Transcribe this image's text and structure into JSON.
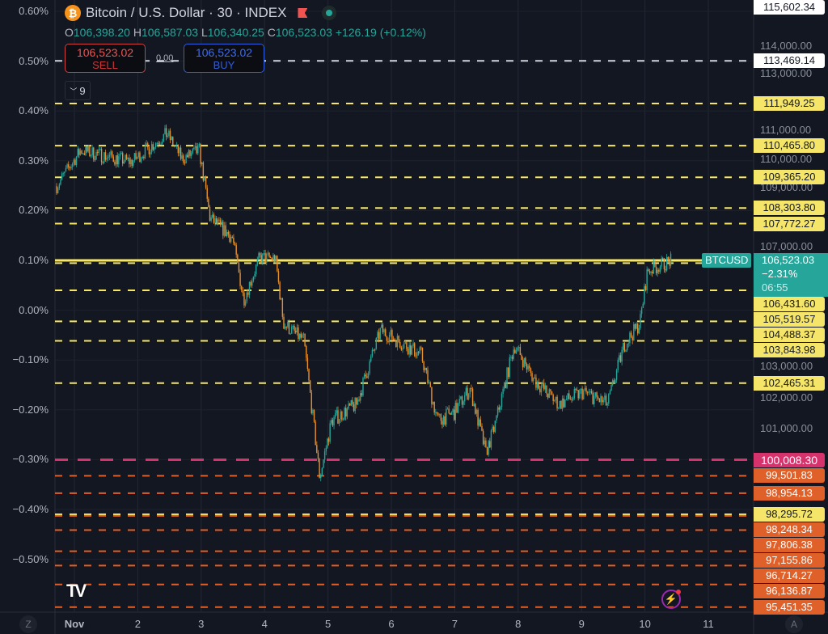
{
  "header": {
    "symbol_title": "Bitcoin / U.S. Dollar · 30 · INDEX",
    "coin_icon": "bitcoin-icon",
    "flag_icon": "flag-icon",
    "status_icon": "market-open-dot-icon",
    "ohlc": {
      "o_label": "O",
      "o": "106,398.20",
      "h_label": "H",
      "h": "106,587.03",
      "l_label": "L",
      "l": "106,340.25",
      "c_label": "C",
      "c": "106,523.03",
      "change": "+126.19 (+0.12%)"
    }
  },
  "trade": {
    "sell_price": "106,523.02",
    "sell_label": "SELL",
    "spread": "0.00",
    "buy_price": "106,523.02",
    "buy_label": "BUY"
  },
  "indicators_toggle": {
    "count": "9"
  },
  "percent_axis": [
    "0.60%",
    "0.50%",
    "0.40%",
    "0.30%",
    "0.20%",
    "0.10%",
    "0.00%",
    "−0.10%",
    "−0.20%",
    "−0.30%",
    "−0.40%",
    "−0.50%"
  ],
  "price_axis_ticks": [
    "114,000.00",
    "113,000.00",
    "111,000.00",
    "110,000.00",
    "109,000.00",
    "107,000.00",
    "103,000.00",
    "102,000.00",
    "101,000.00"
  ],
  "price_axis_tick_values": [
    114000,
    113000,
    111000,
    110000,
    109000,
    107000,
    103000,
    102000,
    101000
  ],
  "top_label": "115,602.34",
  "current": {
    "symbol": "BTCUSD",
    "price": "106,523.03",
    "change": "−2.31%",
    "countdown": "06:55",
    "value": 106523.03,
    "color": "#26a69a"
  },
  "levels": [
    {
      "label": "113,469.14",
      "value": 113469.14,
      "kind": "white"
    },
    {
      "label": "111,949.25",
      "value": 111949.25,
      "kind": "yellow"
    },
    {
      "label": "110,465.80",
      "value": 110465.8,
      "kind": "yellow"
    },
    {
      "label": "109,365.20",
      "value": 109365.2,
      "kind": "yellow"
    },
    {
      "label": "108,303.80",
      "value": 108303.8,
      "kind": "yellow"
    },
    {
      "label": "107,772.27",
      "value": 107772.27,
      "kind": "yellow"
    },
    {
      "label": "106,431.60",
      "value": 106431.6,
      "kind": "yellow"
    },
    {
      "label": "105,519.57",
      "value": 105519.57,
      "kind": "yellow"
    },
    {
      "label": "104,488.37",
      "value": 104488.37,
      "kind": "yellow"
    },
    {
      "label": "103,843.98",
      "value": 103843.98,
      "kind": "yellow"
    },
    {
      "label": "102,465.31",
      "value": 102465.31,
      "kind": "yellow"
    },
    {
      "label": "100,008.30",
      "value": 100008.3,
      "kind": "pink"
    },
    {
      "label": "99,501.83",
      "value": 99501.83,
      "kind": "orange"
    },
    {
      "label": "98,954.13",
      "value": 98954.13,
      "kind": "orange"
    },
    {
      "label": "98,295.72",
      "value": 98295.72,
      "kind": "yellow"
    },
    {
      "label": "98,248.34",
      "value": 98248.34,
      "kind": "orange"
    },
    {
      "label": "97,806.38",
      "value": 97806.38,
      "kind": "orange"
    },
    {
      "label": "97,155.86",
      "value": 97155.86,
      "kind": "orange"
    },
    {
      "label": "96,714.27",
      "value": 96714.27,
      "kind": "orange"
    },
    {
      "label": "96,136.87",
      "value": 96136.87,
      "kind": "orange"
    },
    {
      "label": "95,451.35",
      "value": 95451.35,
      "kind": "orange"
    }
  ],
  "colors": {
    "white": "#d1d4dc",
    "yellow": "#f5e66a",
    "pink": "#d6336c",
    "orange": "#e0602a",
    "up": "#26a69a",
    "down": "#e8902e",
    "background": "#131722"
  },
  "time_axis": [
    "Nov",
    "2",
    "3",
    "4",
    "5",
    "6",
    "7",
    "8",
    "9",
    "10",
    "11"
  ],
  "time_axis_days": [
    1,
    2,
    3,
    4,
    5,
    6,
    7,
    8,
    9,
    10,
    11
  ],
  "bottom": {
    "left_button": "Z",
    "right_button": "A",
    "logo": "TV",
    "alert_icon": "lightning-icon"
  },
  "chart_data": {
    "type": "candlestick",
    "interval": "30",
    "scale": "log",
    "price_path": [
      [
        0.72,
        109060
      ],
      [
        1.1,
        110300
      ],
      [
        1.9,
        109900
      ],
      [
        2.46,
        110890
      ],
      [
        2.7,
        110000
      ],
      [
        2.97,
        110300
      ],
      [
        3.14,
        107950
      ],
      [
        3.49,
        107300
      ],
      [
        3.67,
        105220
      ],
      [
        3.92,
        106600
      ],
      [
        4.17,
        106600
      ],
      [
        4.3,
        104420
      ],
      [
        4.62,
        103850
      ],
      [
        4.87,
        99460
      ],
      [
        5.06,
        101260
      ],
      [
        5.45,
        101780
      ],
      [
        5.83,
        104200
      ],
      [
        6.22,
        103700
      ],
      [
        6.47,
        103400
      ],
      [
        6.73,
        101260
      ],
      [
        6.99,
        101520
      ],
      [
        7.24,
        102300
      ],
      [
        7.49,
        100230
      ],
      [
        7.62,
        101000
      ],
      [
        7.94,
        103700
      ],
      [
        8.26,
        102560
      ],
      [
        8.64,
        101780
      ],
      [
        9.03,
        102180
      ],
      [
        9.41,
        101780
      ],
      [
        9.67,
        103700
      ],
      [
        9.92,
        104420
      ],
      [
        10.04,
        106170
      ],
      [
        10.42,
        106523.03
      ]
    ]
  }
}
